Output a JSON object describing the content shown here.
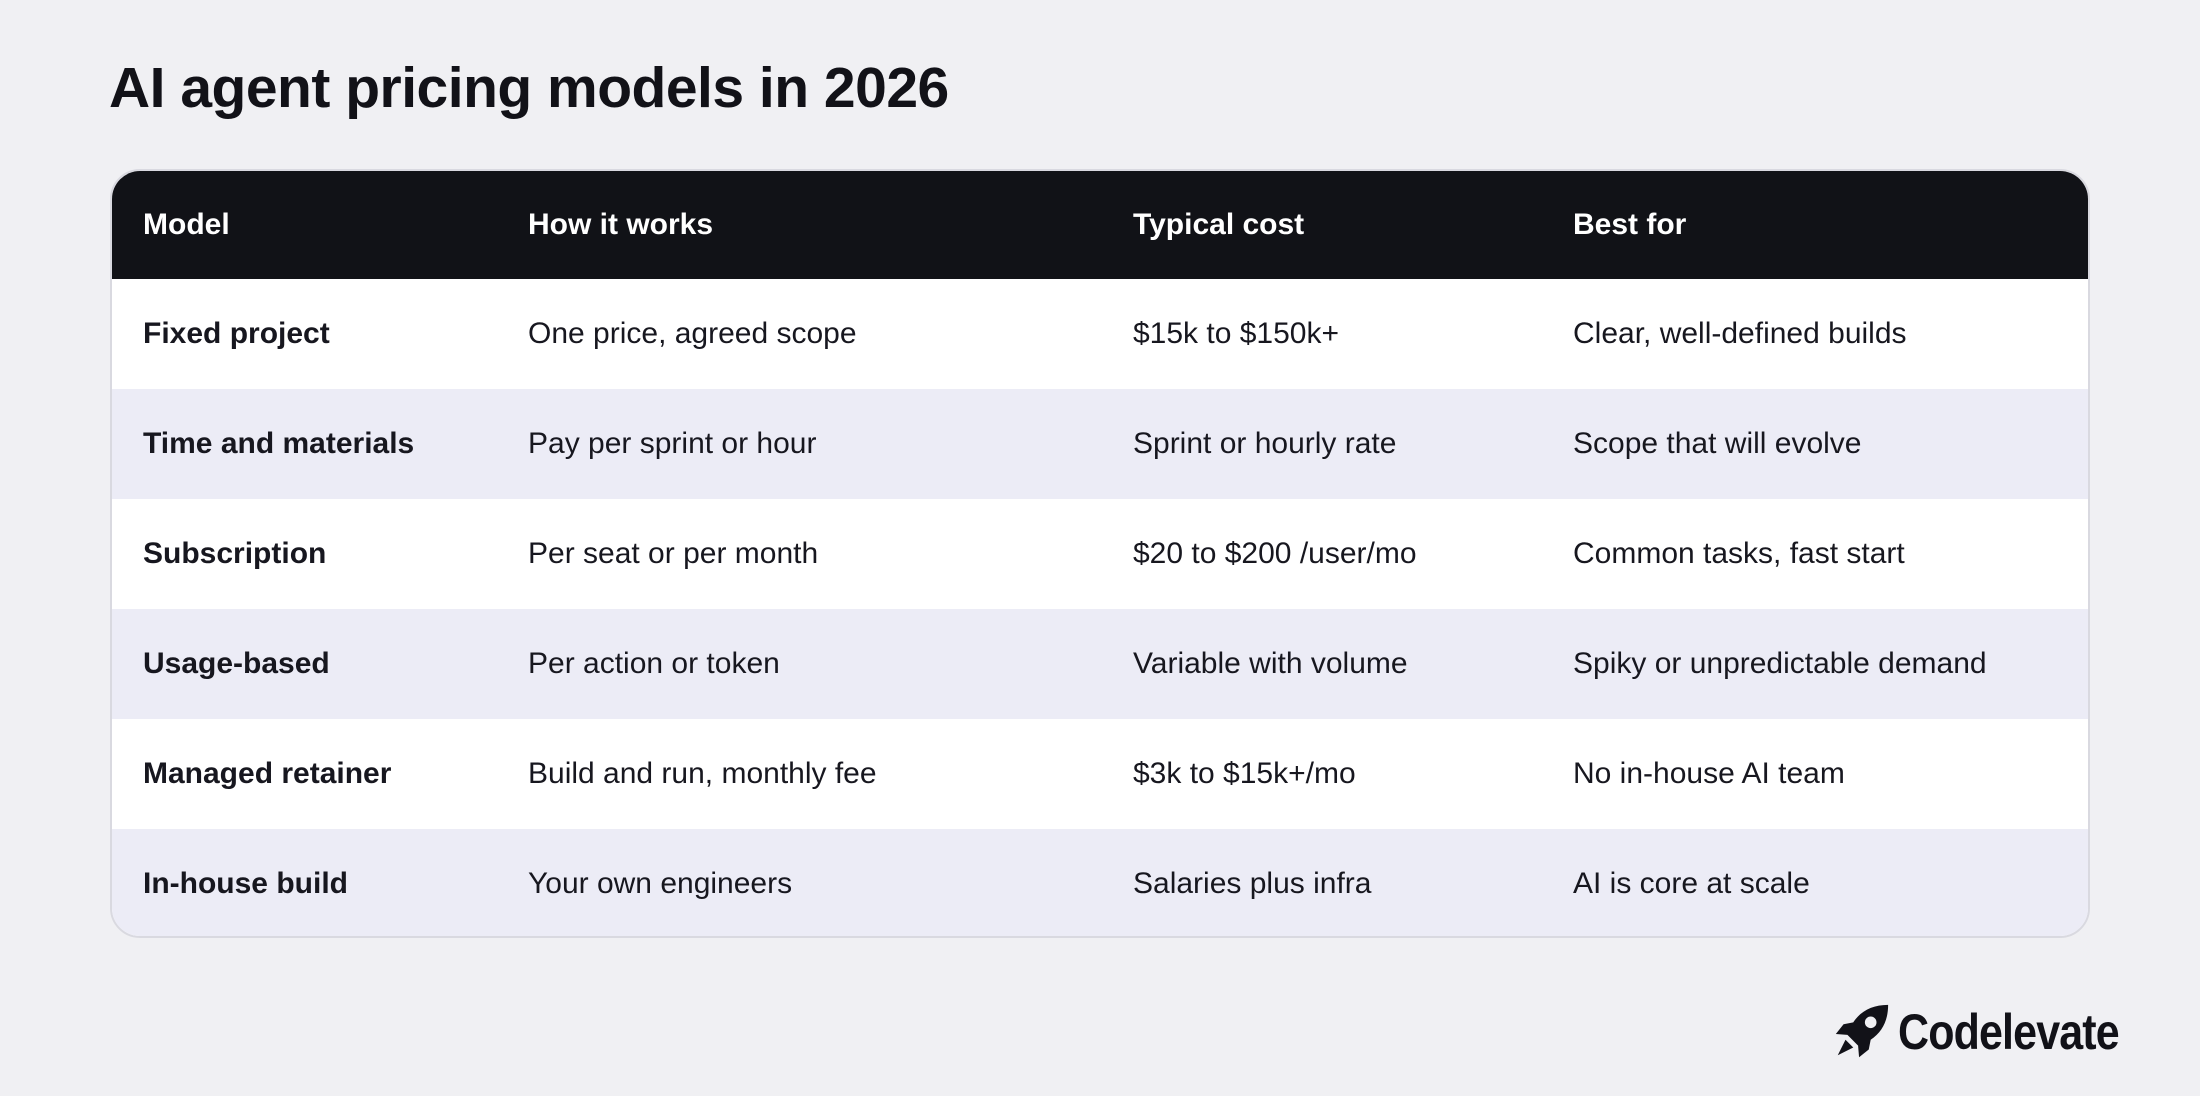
{
  "title": "AI agent pricing models in 2026",
  "table": {
    "headers": [
      "Model",
      "How it works",
      "Typical cost",
      "Best for"
    ],
    "rows": [
      [
        "Fixed project",
        "One price, agreed scope",
        "$15k to $150k+",
        "Clear, well-defined builds"
      ],
      [
        "Time and materials",
        "Pay per sprint or hour",
        "Sprint or hourly rate",
        "Scope that will evolve"
      ],
      [
        "Subscription",
        "Per seat or per month",
        "$20 to $200 /user/mo",
        "Common tasks, fast start"
      ],
      [
        "Usage-based",
        "Per action or token",
        "Variable with volume",
        "Spiky or unpredictable demand"
      ],
      [
        "Managed retainer",
        "Build and run, monthly fee",
        "$3k to $15k+/mo",
        "No in-house AI team"
      ],
      [
        "In-house build",
        "Your own engineers",
        "Salaries plus infra",
        "AI is core at scale"
      ]
    ]
  },
  "brand": {
    "name": "Codelevate",
    "icon": "rocket-icon"
  },
  "colors": {
    "background": "#f0f0f3",
    "header_bg": "#111217",
    "row_alt_bg": "#ececf6",
    "row_bg": "#ffffff"
  }
}
